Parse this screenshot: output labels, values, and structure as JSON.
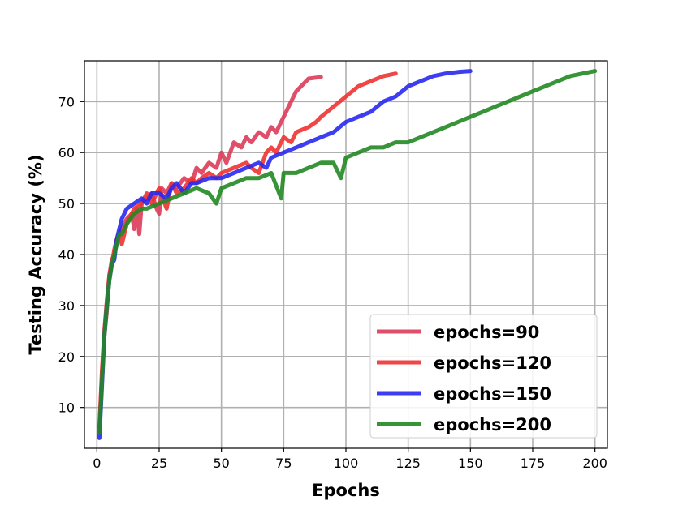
{
  "chart_data": {
    "type": "line",
    "title": "",
    "xlabel": "Epochs",
    "ylabel": "Testing Accuracy (%)",
    "xlim": [
      -5,
      205
    ],
    "ylim": [
      2,
      78
    ],
    "xticks": [
      0,
      25,
      50,
      75,
      100,
      125,
      150,
      175,
      200
    ],
    "yticks": [
      10,
      20,
      30,
      40,
      50,
      60,
      70
    ],
    "grid": true,
    "legend_position": "lower-right",
    "series": [
      {
        "name": "epochs=90",
        "color": "#dc3c5a",
        "x": [
          1,
          2,
          3,
          4,
          5,
          6,
          7,
          8,
          9,
          10,
          12,
          14,
          15,
          16,
          17,
          18,
          20,
          22,
          24,
          25,
          26,
          28,
          30,
          32,
          35,
          38,
          40,
          42,
          45,
          48,
          50,
          52,
          55,
          58,
          60,
          62,
          65,
          68,
          70,
          72,
          75,
          78,
          80,
          82,
          85,
          88,
          90
        ],
        "y": [
          6,
          16,
          24,
          29,
          36,
          39,
          40,
          43,
          44,
          45,
          47,
          48,
          45,
          49,
          44,
          50,
          51,
          52,
          49,
          48,
          53,
          52,
          54,
          53,
          55,
          54,
          57,
          56,
          58,
          57,
          60,
          58,
          62,
          61,
          63,
          62,
          64,
          63,
          65,
          64,
          67,
          70,
          72,
          73,
          74.5,
          74.7,
          74.8
        ]
      },
      {
        "name": "epochs=120",
        "color": "#f03232",
        "x": [
          1,
          2,
          3,
          4,
          5,
          6,
          7,
          8,
          9,
          10,
          12,
          15,
          18,
          20,
          22,
          25,
          28,
          30,
          32,
          35,
          38,
          40,
          42,
          45,
          48,
          50,
          55,
          60,
          62,
          65,
          68,
          70,
          72,
          75,
          78,
          80,
          85,
          88,
          90,
          95,
          100,
          105,
          110,
          115,
          120
        ],
        "y": [
          6,
          17,
          25,
          31,
          36,
          38,
          41,
          43,
          44,
          42,
          46,
          49,
          50,
          52,
          50,
          53,
          49,
          54,
          52,
          53,
          55,
          54,
          55,
          56,
          55,
          56,
          57,
          58,
          57,
          56,
          60,
          61,
          60,
          63,
          62,
          64,
          65,
          66,
          67,
          69,
          71,
          73,
          74,
          75,
          75.5
        ]
      },
      {
        "name": "epochs=150",
        "color": "#2828f0",
        "x": [
          1,
          2,
          3,
          4,
          5,
          6,
          7,
          8,
          9,
          10,
          12,
          15,
          18,
          20,
          22,
          25,
          28,
          30,
          32,
          35,
          38,
          40,
          45,
          50,
          55,
          60,
          65,
          68,
          70,
          75,
          80,
          85,
          90,
          95,
          100,
          105,
          110,
          115,
          120,
          125,
          130,
          135,
          140,
          145,
          150
        ],
        "y": [
          4,
          14,
          24,
          30,
          35,
          38,
          39,
          43,
          45,
          47,
          49,
          50,
          51,
          50,
          52,
          52,
          51,
          53,
          54,
          52,
          54,
          54,
          55,
          55,
          56,
          57,
          58,
          57,
          59,
          60,
          61,
          62,
          63,
          64,
          66,
          67,
          68,
          70,
          71,
          73,
          74,
          75,
          75.5,
          75.8,
          76
        ]
      },
      {
        "name": "epochs=200",
        "color": "#228822",
        "x": [
          1,
          2,
          3,
          4,
          5,
          6,
          7,
          8,
          9,
          10,
          12,
          15,
          18,
          20,
          25,
          30,
          35,
          40,
          45,
          48,
          50,
          55,
          60,
          65,
          70,
          74,
          75,
          80,
          85,
          90,
          95,
          98,
          100,
          105,
          110,
          115,
          120,
          125,
          130,
          135,
          140,
          145,
          150,
          155,
          160,
          165,
          170,
          175,
          180,
          185,
          190,
          195,
          200
        ],
        "y": [
          5,
          15,
          24,
          30,
          35,
          38,
          40,
          42,
          44,
          44,
          46,
          48,
          49,
          49,
          50,
          51,
          52,
          53,
          52,
          50,
          53,
          54,
          55,
          55,
          56,
          51,
          56,
          56,
          57,
          58,
          58,
          55,
          59,
          60,
          61,
          61,
          62,
          62,
          63,
          64,
          65,
          66,
          67,
          68,
          69,
          70,
          71,
          72,
          73,
          74,
          75,
          75.5,
          76
        ]
      }
    ]
  }
}
